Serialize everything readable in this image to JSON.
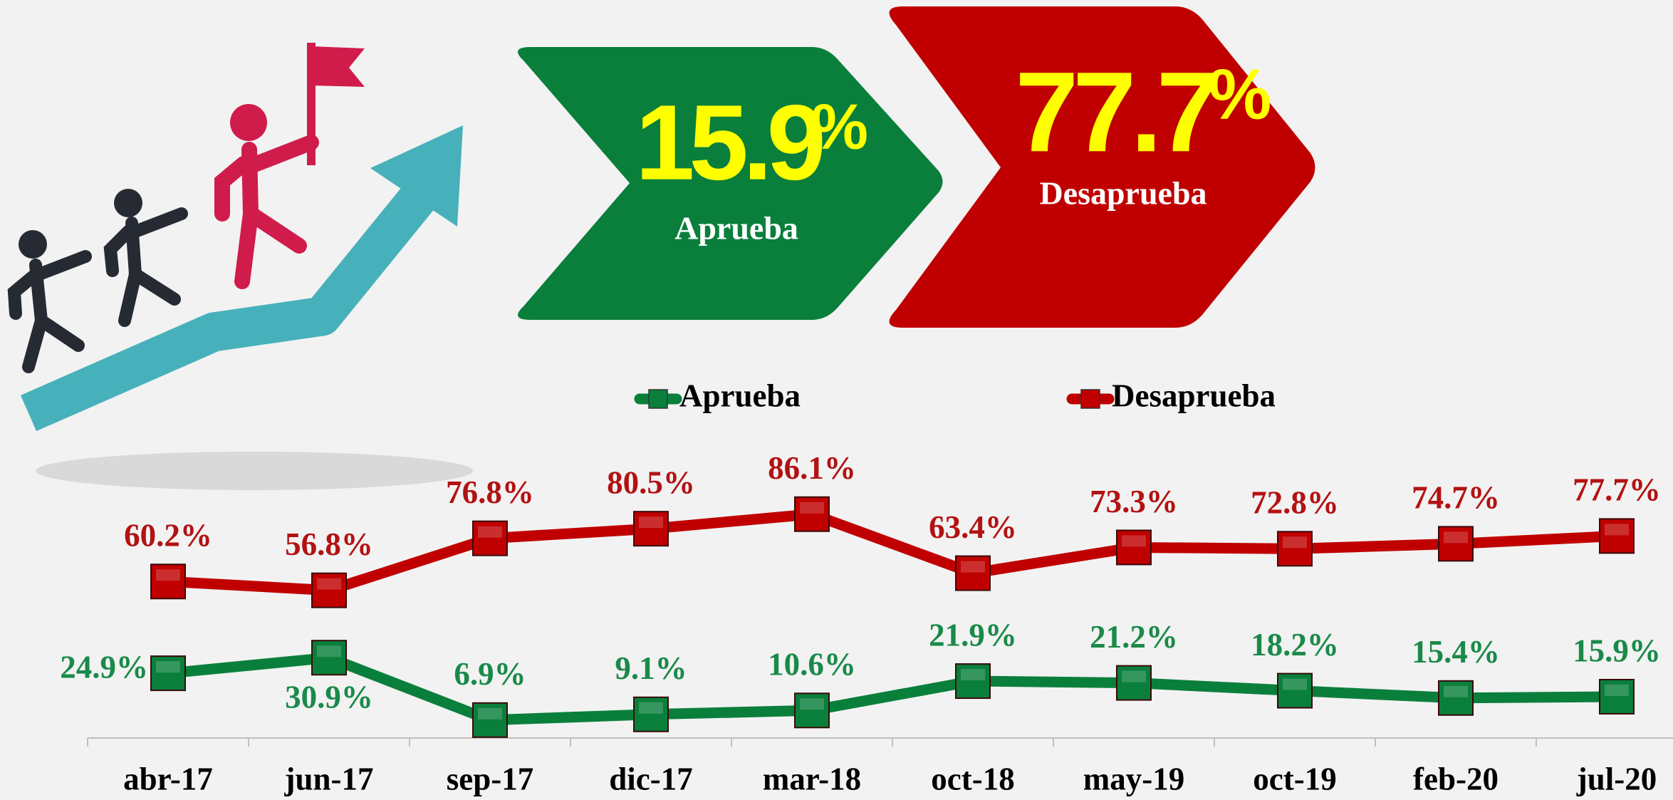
{
  "banners": [
    {
      "value": "15.9",
      "unit": "%",
      "label": "Aprueba"
    },
    {
      "value": "77.7",
      "unit": "%",
      "label": "Desaprueba"
    }
  ],
  "chart_data": {
    "type": "line",
    "categories": [
      "abr-17",
      "jun-17",
      "sep-17",
      "dic-17",
      "mar-18",
      "oct-18",
      "may-19",
      "oct-19",
      "feb-20",
      "jul-20"
    ],
    "series": [
      {
        "name": "Aprueba",
        "color": "#0a7f3c",
        "label_color": "#1a8a4a",
        "values": [
          24.9,
          30.9,
          6.9,
          9.1,
          10.6,
          21.9,
          21.2,
          18.2,
          15.4,
          15.9
        ],
        "value_labels": [
          "24.9%",
          "30.9%",
          "6.9%",
          "9.1%",
          "10.6%",
          "21.9%",
          "21.2%",
          "18.2%",
          "15.4%",
          "15.9%"
        ]
      },
      {
        "name": "Desaprueba",
        "color": "#c00000",
        "label_color": "#b31212",
        "values": [
          60.2,
          56.8,
          76.8,
          80.5,
          86.1,
          63.4,
          73.3,
          72.8,
          74.7,
          77.7
        ],
        "value_labels": [
          "60.2%",
          "56.8%",
          "76.8%",
          "80.5%",
          "86.1%",
          "63.4%",
          "73.3%",
          "72.8%",
          "74.7%",
          "77.7%"
        ]
      }
    ],
    "ylim": [
      0,
      100
    ],
    "legend": "top"
  }
}
